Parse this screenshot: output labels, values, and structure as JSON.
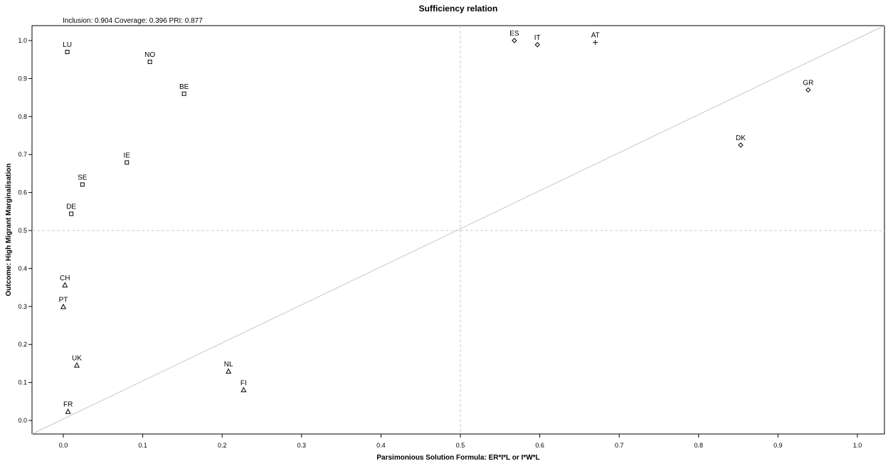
{
  "chart_data": {
    "type": "scatter",
    "title": "Sufficiency relation",
    "stats": "Inclusion: 0.904   Coverage: 0.396   PRI: 0.877",
    "xlabel": "Parsimonious Solution Formula: ER*I*L or I*W*L",
    "ylabel": "Outcome: High Migrant Marginalisation",
    "xlim": [
      0,
      1
    ],
    "ylim": [
      0,
      1
    ],
    "ticks": [
      "0.0",
      "0.1",
      "0.2",
      "0.3",
      "0.4",
      "0.5",
      "0.6",
      "0.7",
      "0.8",
      "0.9",
      "1.0"
    ],
    "tick_values": [
      0,
      0.1,
      0.2,
      0.3,
      0.4,
      0.5,
      0.6,
      0.7,
      0.8,
      0.9,
      1.0
    ],
    "reference_lines": {
      "diagonal": true,
      "x_dashed": 0.5,
      "y_dashed": 0.5
    },
    "points": [
      {
        "label": "LU",
        "x": 0.005,
        "y": 0.97,
        "marker": "square"
      },
      {
        "label": "NO",
        "x": 0.109,
        "y": 0.944,
        "marker": "square"
      },
      {
        "label": "BE",
        "x": 0.152,
        "y": 0.86,
        "marker": "square"
      },
      {
        "label": "IE",
        "x": 0.08,
        "y": 0.679,
        "marker": "square"
      },
      {
        "label": "SE",
        "x": 0.024,
        "y": 0.621,
        "marker": "square"
      },
      {
        "label": "DE",
        "x": 0.01,
        "y": 0.544,
        "marker": "square"
      },
      {
        "label": "ES",
        "x": 0.568,
        "y": 1.0,
        "marker": "diamond"
      },
      {
        "label": "IT",
        "x": 0.597,
        "y": 0.989,
        "marker": "diamond"
      },
      {
        "label": "AT",
        "x": 0.67,
        "y": 0.995,
        "marker": "plus"
      },
      {
        "label": "GR",
        "x": 0.938,
        "y": 0.87,
        "marker": "diamond"
      },
      {
        "label": "DK",
        "x": 0.853,
        "y": 0.725,
        "marker": "diamond"
      },
      {
        "label": "CH",
        "x": 0.002,
        "y": 0.356,
        "marker": "triangle"
      },
      {
        "label": "PT",
        "x": 0.0,
        "y": 0.299,
        "marker": "triangle"
      },
      {
        "label": "UK",
        "x": 0.017,
        "y": 0.145,
        "marker": "triangle"
      },
      {
        "label": "NL",
        "x": 0.208,
        "y": 0.129,
        "marker": "triangle"
      },
      {
        "label": "FI",
        "x": 0.227,
        "y": 0.08,
        "marker": "triangle"
      },
      {
        "label": "FR",
        "x": 0.006,
        "y": 0.023,
        "marker": "triangle"
      }
    ]
  }
}
